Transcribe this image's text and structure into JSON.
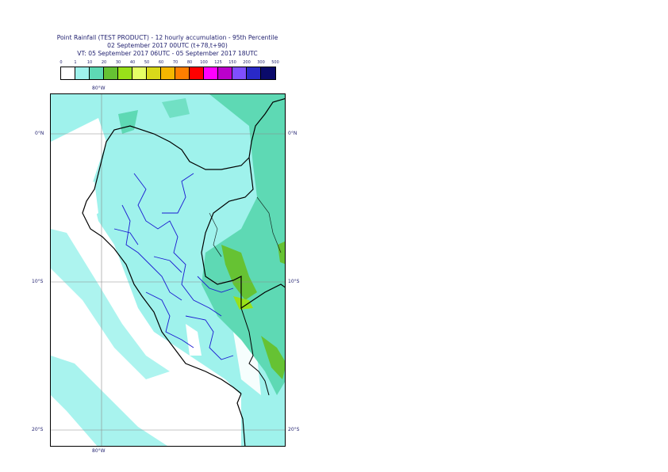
{
  "title": {
    "line1": "Point Rainfall (TEST PRODUCT) - 12 hourly accumulation - 95th Percentile",
    "line2": "02 September 2017 00UTC (t+78,t+90)",
    "line3": "VT: 05 September 2017 06UTC - 05 September 2017 18UTC"
  },
  "legend": {
    "ticks": [
      "0",
      "1",
      "10",
      "20",
      "30",
      "40",
      "50",
      "60",
      "70",
      "80",
      "100",
      "125",
      "150",
      "200",
      "300",
      "500"
    ],
    "colors": [
      "#ffffff",
      "#9ff2ec",
      "#5ed9b4",
      "#66c233",
      "#99e019",
      "#e6ff66",
      "#d9d91a",
      "#f5b700",
      "#ff7f00",
      "#ff0000",
      "#ff00ff",
      "#bb00cc",
      "#7f4fff",
      "#2929c7",
      "#0a0a6b"
    ]
  },
  "map": {
    "lon_top": "80°W",
    "lon_bottom": "80°W",
    "lat_labels_left": [
      "0°N",
      "10°S",
      "20°S"
    ],
    "lat_labels_right": [
      "0°N",
      "10°S",
      "20°S"
    ],
    "ocean_color": "#ffffff",
    "light_rain_color": "#9ff2ec",
    "moderate_rain_color": "#5ed9b4",
    "heavy_rain_color": "#66c233",
    "very_heavy_rain_color": "#99e019"
  }
}
